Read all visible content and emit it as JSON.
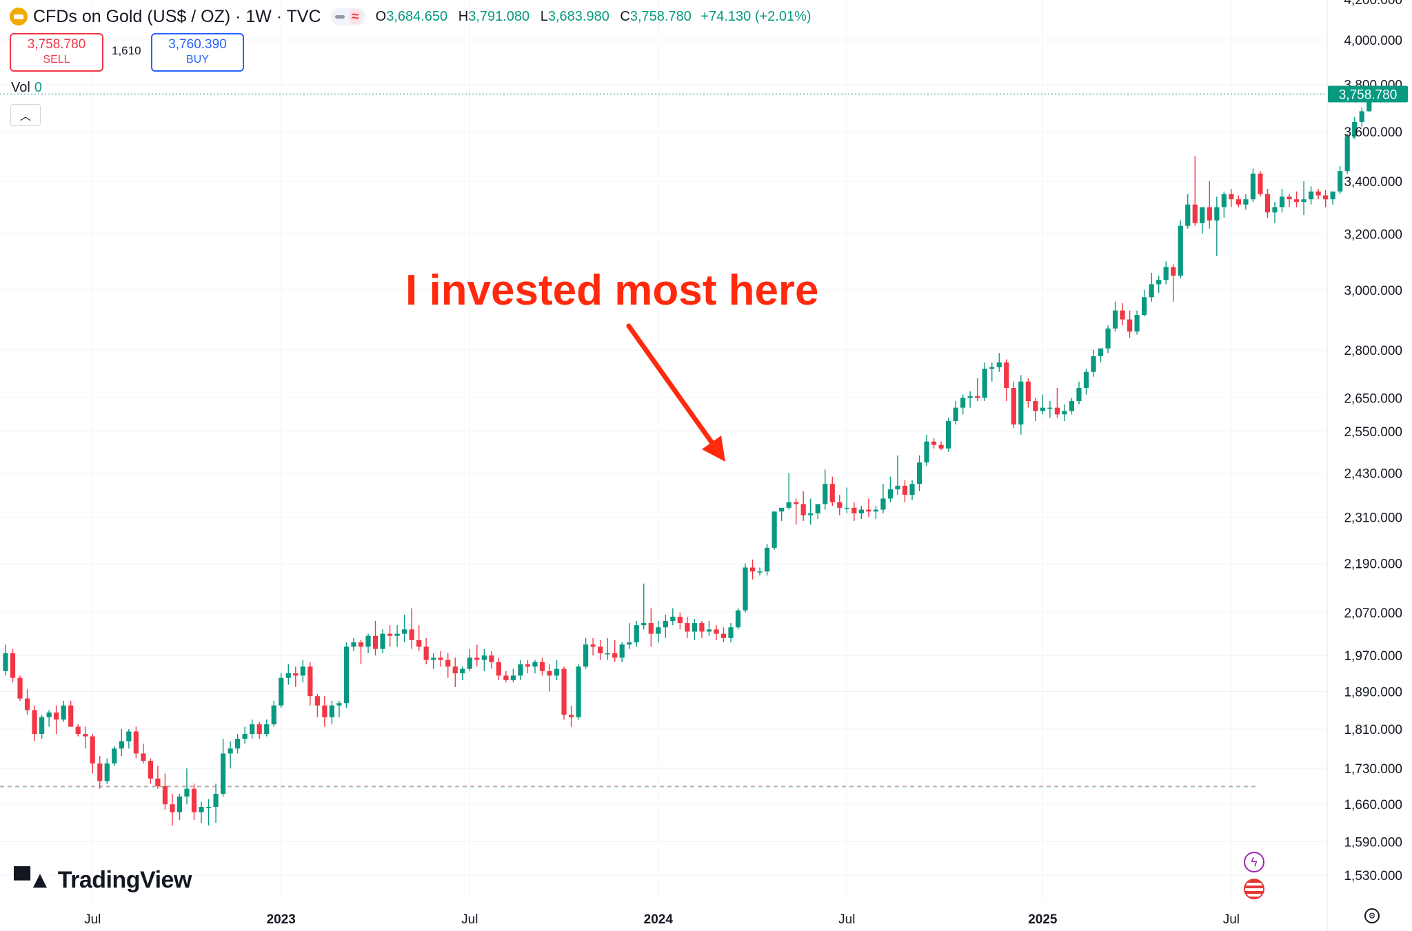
{
  "header": {
    "title": "CFDs on Gold (US$ / OZ) · 1W · TVC",
    "ohlc": {
      "o_label": "O",
      "o": "3,684.650",
      "h_label": "H",
      "h": "3,791.080",
      "l_label": "L",
      "l": "3,683.980",
      "c_label": "C",
      "c": "3,758.780",
      "change": "+74.130 (+2.01%)"
    }
  },
  "trade": {
    "sell_price": "3,758.780",
    "sell_label": "SELL",
    "spread": "1,610",
    "buy_price": "3,760.390",
    "buy_label": "BUY"
  },
  "volume": {
    "label": "Vol",
    "value": "0"
  },
  "annotation": {
    "text": "I invested most here"
  },
  "branding": {
    "name": "TradingView"
  },
  "colors": {
    "up": "#089981",
    "down": "#f23645",
    "annotation": "#ff2a0d",
    "accent": "#2962ff"
  },
  "icons": [
    "gold-coin-icon",
    "chevron-up-icon",
    "lightning-icon",
    "us-flag-icon",
    "settings-icon"
  ],
  "chart_data": {
    "type": "candlestick",
    "scale": "log",
    "ylim": [
      1480,
      4200
    ],
    "y_ticks": [
      1530,
      1590,
      1660,
      1730,
      1810,
      1890,
      1970,
      2070,
      2190,
      2310,
      2430,
      2550,
      2650,
      2800,
      3000,
      3200,
      3400,
      3600,
      3800,
      4000
    ],
    "y_tick_labels": [
      "1,530.000",
      "1,590.000",
      "1,660.000",
      "1,730.000",
      "1,810.000",
      "1,890.000",
      "1,970.000",
      "2,070.000",
      "2,190.000",
      "2,310.000",
      "2,430.000",
      "2,550.000",
      "2,650.000",
      "2,800.000",
      "3,000.000",
      "3,200.000",
      "3,400.000",
      "3,600.000",
      "3,800.000",
      "4,000.000"
    ],
    "top_tick_label": "4,200.000",
    "x_ticks": [
      {
        "week": 12,
        "label": "Jul",
        "bold": false
      },
      {
        "week": 38,
        "label": "2023",
        "bold": true
      },
      {
        "week": 64,
        "label": "Jul",
        "bold": false
      },
      {
        "week": 90,
        "label": "2024",
        "bold": true
      },
      {
        "week": 116,
        "label": "Jul",
        "bold": false
      },
      {
        "week": 143,
        "label": "2025",
        "bold": true
      },
      {
        "week": 169,
        "label": "Jul",
        "bold": false
      }
    ],
    "last_price": 3758.78,
    "last_price_label": "3,758.780",
    "dashed_level": 1695,
    "weeks": [
      "2022-04-04",
      "2025-09-22"
    ],
    "ohlc": [
      [
        1935,
        1995,
        1925,
        1975
      ],
      [
        1975,
        1985,
        1910,
        1920
      ],
      [
        1920,
        1925,
        1870,
        1875
      ],
      [
        1875,
        1895,
        1840,
        1850
      ],
      [
        1850,
        1860,
        1785,
        1800
      ],
      [
        1800,
        1840,
        1790,
        1835
      ],
      [
        1835,
        1850,
        1815,
        1845
      ],
      [
        1845,
        1860,
        1800,
        1830
      ],
      [
        1830,
        1870,
        1825,
        1860
      ],
      [
        1860,
        1870,
        1815,
        1815
      ],
      [
        1815,
        1820,
        1795,
        1800
      ],
      [
        1800,
        1815,
        1770,
        1795
      ],
      [
        1795,
        1800,
        1720,
        1740
      ],
      [
        1740,
        1755,
        1690,
        1705
      ],
      [
        1705,
        1750,
        1700,
        1740
      ],
      [
        1740,
        1775,
        1735,
        1770
      ],
      [
        1770,
        1810,
        1755,
        1785
      ],
      [
        1785,
        1810,
        1770,
        1805
      ],
      [
        1805,
        1815,
        1750,
        1760
      ],
      [
        1760,
        1780,
        1740,
        1745
      ],
      [
        1745,
        1750,
        1700,
        1710
      ],
      [
        1710,
        1735,
        1690,
        1695
      ],
      [
        1695,
        1720,
        1650,
        1660
      ],
      [
        1660,
        1680,
        1620,
        1645
      ],
      [
        1645,
        1680,
        1630,
        1675
      ],
      [
        1675,
        1730,
        1660,
        1690
      ],
      [
        1690,
        1700,
        1630,
        1645
      ],
      [
        1645,
        1665,
        1625,
        1655
      ],
      [
        1655,
        1670,
        1620,
        1655
      ],
      [
        1655,
        1700,
        1625,
        1680
      ],
      [
        1680,
        1790,
        1675,
        1760
      ],
      [
        1760,
        1785,
        1730,
        1770
      ],
      [
        1770,
        1800,
        1760,
        1790
      ],
      [
        1790,
        1815,
        1780,
        1800
      ],
      [
        1800,
        1830,
        1790,
        1820
      ],
      [
        1820,
        1825,
        1790,
        1800
      ],
      [
        1800,
        1830,
        1795,
        1820
      ],
      [
        1820,
        1870,
        1815,
        1860
      ],
      [
        1860,
        1930,
        1855,
        1920
      ],
      [
        1920,
        1950,
        1905,
        1930
      ],
      [
        1930,
        1945,
        1900,
        1925
      ],
      [
        1925,
        1960,
        1910,
        1945
      ],
      [
        1945,
        1955,
        1860,
        1880
      ],
      [
        1880,
        1885,
        1835,
        1860
      ],
      [
        1860,
        1880,
        1815,
        1835
      ],
      [
        1835,
        1870,
        1820,
        1860
      ],
      [
        1860,
        1870,
        1835,
        1865
      ],
      [
        1865,
        2000,
        1855,
        1990
      ],
      [
        1990,
        2010,
        1980,
        2000
      ],
      [
        2000,
        2005,
        1950,
        1990
      ],
      [
        1990,
        2020,
        1975,
        2015
      ],
      [
        2015,
        2050,
        1970,
        1985
      ],
      [
        1985,
        2030,
        1975,
        2020
      ],
      [
        2020,
        2040,
        1990,
        2015
      ],
      [
        2015,
        2040,
        1990,
        2020
      ],
      [
        2020,
        2065,
        2000,
        2030
      ],
      [
        2030,
        2080,
        1985,
        2005
      ],
      [
        2005,
        2040,
        1980,
        1990
      ],
      [
        1990,
        2010,
        1950,
        1960
      ],
      [
        1960,
        1975,
        1940,
        1965
      ],
      [
        1965,
        1980,
        1945,
        1960
      ],
      [
        1960,
        1975,
        1920,
        1945
      ],
      [
        1945,
        1965,
        1900,
        1930
      ],
      [
        1930,
        1945,
        1915,
        1940
      ],
      [
        1940,
        1985,
        1935,
        1965
      ],
      [
        1965,
        1995,
        1945,
        1960
      ],
      [
        1960,
        1985,
        1935,
        1970
      ],
      [
        1970,
        1980,
        1940,
        1955
      ],
      [
        1955,
        1965,
        1915,
        1925
      ],
      [
        1925,
        1935,
        1910,
        1915
      ],
      [
        1915,
        1940,
        1910,
        1925
      ],
      [
        1925,
        1960,
        1915,
        1950
      ],
      [
        1950,
        1960,
        1930,
        1945
      ],
      [
        1945,
        1960,
        1930,
        1955
      ],
      [
        1955,
        1965,
        1925,
        1935
      ],
      [
        1935,
        1950,
        1890,
        1925
      ],
      [
        1925,
        1960,
        1915,
        1940
      ],
      [
        1940,
        1945,
        1830,
        1840
      ],
      [
        1840,
        1860,
        1815,
        1835
      ],
      [
        1835,
        1950,
        1830,
        1945
      ],
      [
        1945,
        2010,
        1940,
        1995
      ],
      [
        1995,
        2010,
        1970,
        1990
      ],
      [
        1990,
        2005,
        1960,
        1975
      ],
      [
        1975,
        2010,
        1960,
        1975
      ],
      [
        1975,
        2005,
        1955,
        1965
      ],
      [
        1965,
        2000,
        1955,
        1995
      ],
      [
        1995,
        2045,
        1985,
        2000
      ],
      [
        2000,
        2050,
        1990,
        2040
      ],
      [
        2040,
        2140,
        2030,
        2045
      ],
      [
        2045,
        2080,
        1990,
        2020
      ],
      [
        2020,
        2050,
        2000,
        2035
      ],
      [
        2035,
        2065,
        2010,
        2050
      ],
      [
        2050,
        2080,
        2040,
        2060
      ],
      [
        2060,
        2070,
        2030,
        2045
      ],
      [
        2045,
        2060,
        2010,
        2025
      ],
      [
        2025,
        2055,
        2005,
        2045
      ],
      [
        2045,
        2050,
        2010,
        2025
      ],
      [
        2025,
        2050,
        2015,
        2030
      ],
      [
        2030,
        2040,
        2005,
        2020
      ],
      [
        2020,
        2035,
        2000,
        2010
      ],
      [
        2010,
        2045,
        2000,
        2035
      ],
      [
        2035,
        2080,
        2030,
        2075
      ],
      [
        2075,
        2190,
        2070,
        2180
      ],
      [
        2180,
        2200,
        2150,
        2170
      ],
      [
        2170,
        2180,
        2160,
        2170
      ],
      [
        2170,
        2240,
        2160,
        2230
      ],
      [
        2230,
        2320,
        2225,
        2325
      ],
      [
        2325,
        2330,
        2300,
        2335
      ],
      [
        2335,
        2430,
        2330,
        2350
      ],
      [
        2350,
        2360,
        2290,
        2345
      ],
      [
        2345,
        2380,
        2300,
        2315
      ],
      [
        2315,
        2360,
        2290,
        2320
      ],
      [
        2320,
        2340,
        2305,
        2345
      ],
      [
        2345,
        2440,
        2330,
        2400
      ],
      [
        2400,
        2420,
        2340,
        2350
      ],
      [
        2350,
        2370,
        2315,
        2335
      ],
      [
        2335,
        2390,
        2320,
        2335
      ],
      [
        2335,
        2350,
        2300,
        2320
      ],
      [
        2320,
        2340,
        2305,
        2330
      ],
      [
        2330,
        2360,
        2310,
        2325
      ],
      [
        2325,
        2340,
        2305,
        2330
      ],
      [
        2330,
        2400,
        2320,
        2360
      ],
      [
        2360,
        2420,
        2350,
        2385
      ],
      [
        2385,
        2480,
        2370,
        2395
      ],
      [
        2395,
        2410,
        2350,
        2370
      ],
      [
        2370,
        2410,
        2355,
        2400
      ],
      [
        2400,
        2480,
        2380,
        2460
      ],
      [
        2460,
        2540,
        2450,
        2520
      ],
      [
        2520,
        2530,
        2500,
        2510
      ],
      [
        2510,
        2520,
        2495,
        2500
      ],
      [
        2500,
        2590,
        2490,
        2580
      ],
      [
        2580,
        2640,
        2570,
        2620
      ],
      [
        2620,
        2660,
        2600,
        2650
      ],
      [
        2650,
        2670,
        2620,
        2655
      ],
      [
        2655,
        2710,
        2640,
        2650
      ],
      [
        2650,
        2760,
        2640,
        2740
      ],
      [
        2740,
        2760,
        2700,
        2745
      ],
      [
        2745,
        2790,
        2730,
        2760
      ],
      [
        2760,
        2770,
        2640,
        2680
      ],
      [
        2680,
        2700,
        2560,
        2570
      ],
      [
        2570,
        2720,
        2540,
        2700
      ],
      [
        2700,
        2710,
        2620,
        2640
      ],
      [
        2640,
        2650,
        2580,
        2610
      ],
      [
        2610,
        2660,
        2600,
        2620
      ],
      [
        2620,
        2640,
        2590,
        2620
      ],
      [
        2620,
        2680,
        2590,
        2600
      ],
      [
        2600,
        2630,
        2580,
        2610
      ],
      [
        2610,
        2650,
        2600,
        2640
      ],
      [
        2640,
        2700,
        2630,
        2680
      ],
      [
        2680,
        2740,
        2660,
        2730
      ],
      [
        2730,
        2800,
        2715,
        2780
      ],
      [
        2780,
        2800,
        2760,
        2805
      ],
      [
        2805,
        2880,
        2790,
        2870
      ],
      [
        2870,
        2960,
        2860,
        2930
      ],
      [
        2930,
        2955,
        2880,
        2900
      ],
      [
        2900,
        2930,
        2840,
        2860
      ],
      [
        2860,
        2930,
        2850,
        2915
      ],
      [
        2915,
        3000,
        2910,
        2975
      ],
      [
        2975,
        3060,
        2960,
        3020
      ],
      [
        3020,
        3050,
        2990,
        3035
      ],
      [
        3035,
        3100,
        3020,
        3080
      ],
      [
        3080,
        3090,
        2960,
        3050
      ],
      [
        3050,
        3250,
        3040,
        3230
      ],
      [
        3230,
        3350,
        3220,
        3310
      ],
      [
        3310,
        3500,
        3230,
        3240
      ],
      [
        3240,
        3290,
        3200,
        3300
      ],
      [
        3300,
        3400,
        3220,
        3250
      ],
      [
        3250,
        3340,
        3120,
        3300
      ],
      [
        3300,
        3360,
        3260,
        3350
      ],
      [
        3350,
        3370,
        3300,
        3330
      ],
      [
        3330,
        3345,
        3300,
        3310
      ],
      [
        3310,
        3350,
        3290,
        3330
      ],
      [
        3330,
        3450,
        3320,
        3430
      ],
      [
        3430,
        3440,
        3340,
        3350
      ],
      [
        3350,
        3370,
        3260,
        3280
      ],
      [
        3280,
        3320,
        3240,
        3300
      ],
      [
        3300,
        3370,
        3280,
        3340
      ],
      [
        3340,
        3350,
        3300,
        3330
      ],
      [
        3330,
        3360,
        3300,
        3320
      ],
      [
        3320,
        3400,
        3270,
        3330
      ],
      [
        3330,
        3380,
        3310,
        3360
      ],
      [
        3360,
        3370,
        3330,
        3345
      ],
      [
        3345,
        3365,
        3300,
        3330
      ],
      [
        3330,
        3350,
        3310,
        3360
      ],
      [
        3360,
        3460,
        3350,
        3440
      ],
      [
        3440,
        3590,
        3430,
        3580
      ],
      [
        3580,
        3660,
        3570,
        3640
      ],
      [
        3640,
        3700,
        3620,
        3685
      ],
      [
        3684.65,
        3791.08,
        3683.98,
        3758.78
      ]
    ]
  }
}
